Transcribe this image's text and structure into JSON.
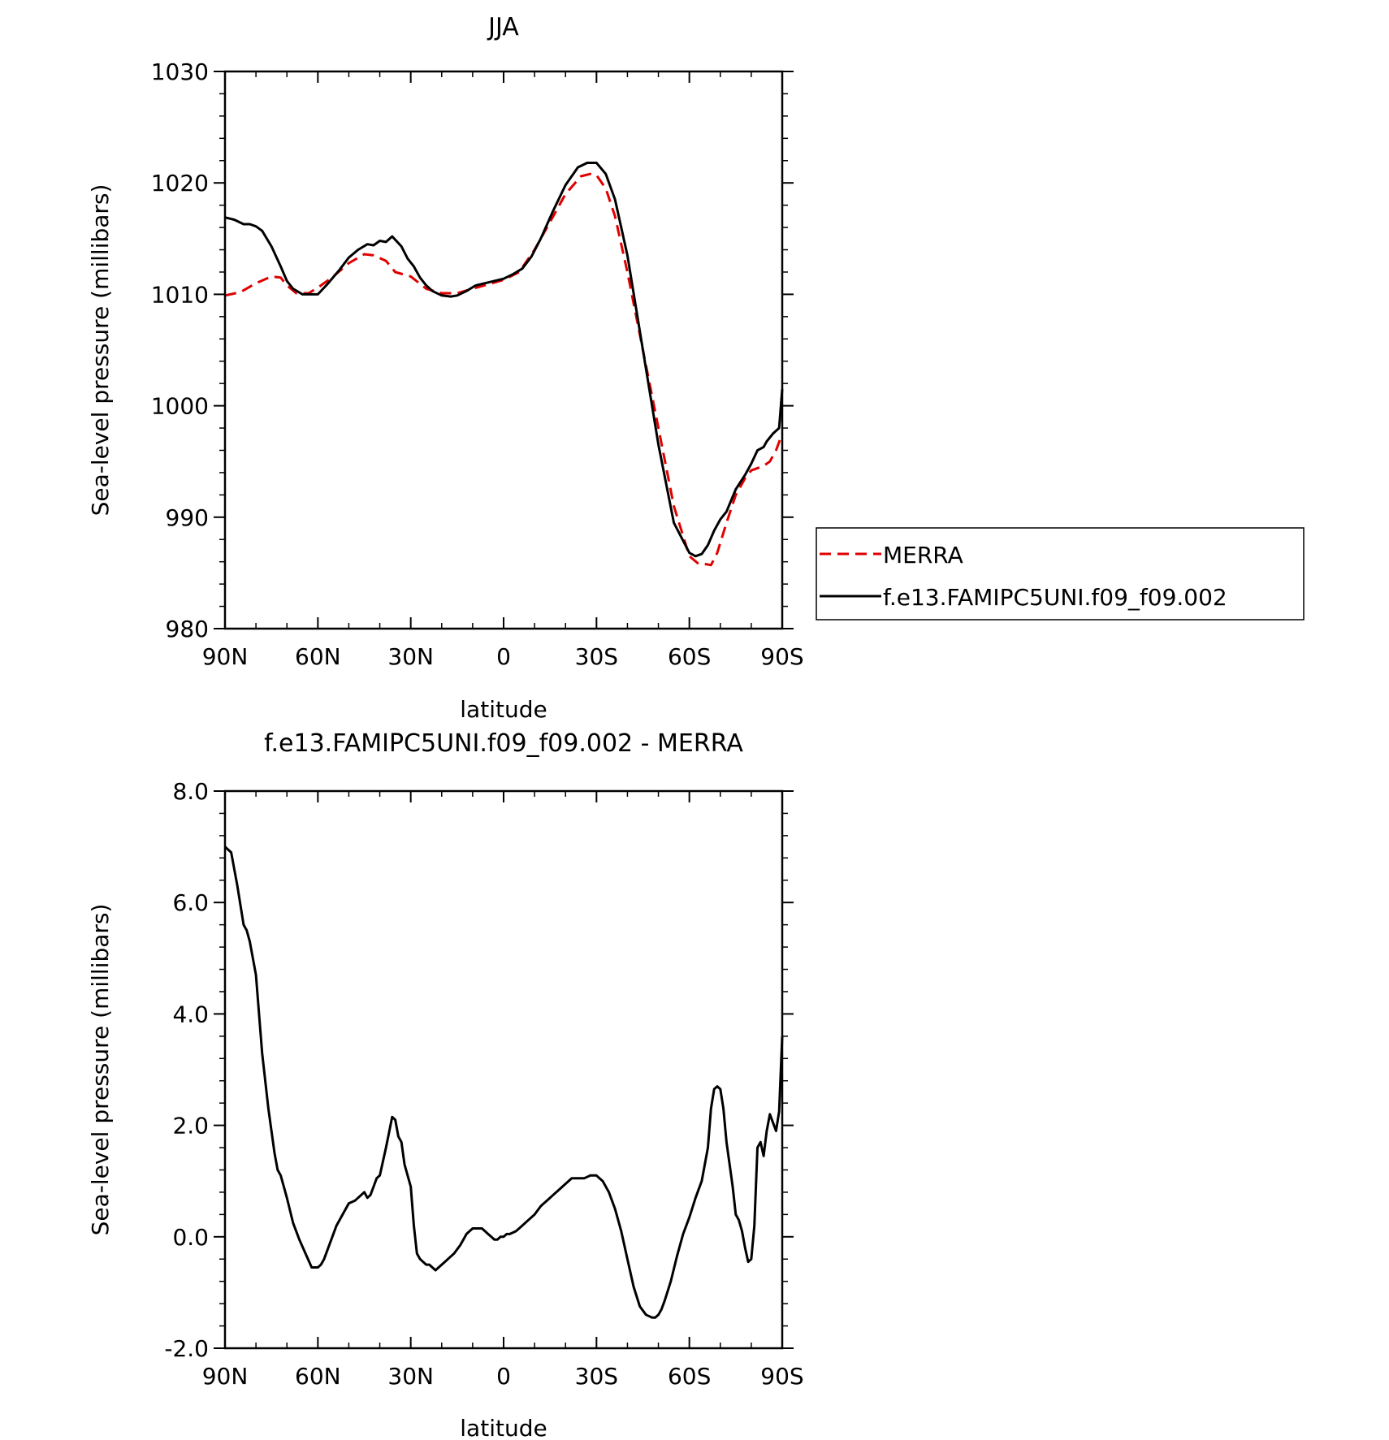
{
  "chart_data": [
    {
      "type": "line",
      "title": "JJA",
      "xlabel": "latitude",
      "ylabel": "Sea-level pressure (millibars)",
      "x_ticks": [
        "90N",
        "60N",
        "30N",
        "0",
        "30S",
        "60S",
        "90S"
      ],
      "x_tick_values": [
        90,
        60,
        30,
        0,
        -30,
        -60,
        -90
      ],
      "y_ticks": [
        "980",
        "990",
        "1000",
        "1010",
        "1020",
        "1030"
      ],
      "y_tick_values": [
        980,
        990,
        1000,
        1010,
        1020,
        1030
      ],
      "xlim": [
        90,
        -90
      ],
      "ylim": [
        980,
        1030
      ],
      "legend_position": "right",
      "series": [
        {
          "name": "MERRA",
          "color": "#e00000",
          "dash": "dashed",
          "x": [
            90,
            85,
            80,
            75,
            72,
            70,
            67,
            63,
            60,
            55,
            50,
            45,
            42,
            38,
            35,
            30,
            25,
            20,
            15,
            10,
            5,
            0,
            -5,
            -10,
            -15,
            -20,
            -25,
            -28,
            -30,
            -33,
            -36,
            -40,
            -45,
            -50,
            -55,
            -60,
            -63,
            -65,
            -67,
            -69,
            -72,
            -75,
            -78,
            -80,
            -84,
            -86,
            -88,
            -90
          ],
          "y": [
            1009.9,
            1010.2,
            1011.0,
            1011.6,
            1011.5,
            1010.8,
            1010.1,
            1010.1,
            1010.6,
            1011.6,
            1012.8,
            1013.6,
            1013.5,
            1013.0,
            1012.0,
            1011.6,
            1010.5,
            1010.1,
            1010.1,
            1010.5,
            1010.9,
            1011.3,
            1012.0,
            1014.0,
            1016.5,
            1019.0,
            1020.6,
            1020.8,
            1020.7,
            1019.5,
            1017.0,
            1012.0,
            1005.0,
            998.0,
            991.0,
            986.5,
            985.8,
            985.8,
            985.7,
            986.8,
            989.5,
            992.0,
            993.5,
            994.2,
            994.6,
            995.0,
            996.0,
            997.5
          ]
        },
        {
          "name": "f.e13.FAMIPC5UNI.f09_f09.002",
          "color": "#000000",
          "dash": "solid",
          "x": [
            90,
            87,
            84,
            82,
            80,
            78,
            75,
            72,
            70,
            68,
            65,
            62,
            60,
            57,
            53,
            50,
            47,
            44,
            42,
            40,
            38,
            36,
            35,
            33,
            31,
            29,
            27,
            25,
            23,
            20,
            17,
            15,
            12,
            9,
            6,
            3,
            0,
            -3,
            -6,
            -9,
            -12,
            -16,
            -20,
            -24,
            -27,
            -30,
            -33,
            -36,
            -40,
            -45,
            -50,
            -55,
            -60,
            -62,
            -64,
            -66,
            -68,
            -70,
            -72,
            -75,
            -78,
            -80,
            -82,
            -84,
            -85,
            -87,
            -89,
            -90
          ],
          "y": [
            1016.9,
            1016.7,
            1016.3,
            1016.3,
            1016.1,
            1015.7,
            1014.3,
            1012.5,
            1011.2,
            1010.5,
            1010.0,
            1010.0,
            1010.0,
            1010.9,
            1012.2,
            1013.3,
            1014.0,
            1014.5,
            1014.4,
            1014.8,
            1014.7,
            1015.2,
            1014.9,
            1014.3,
            1013.2,
            1012.5,
            1011.5,
            1010.8,
            1010.3,
            1009.9,
            1009.8,
            1009.9,
            1010.3,
            1010.8,
            1011.0,
            1011.2,
            1011.4,
            1011.8,
            1012.3,
            1013.4,
            1015.0,
            1017.5,
            1019.8,
            1021.4,
            1021.8,
            1021.8,
            1020.8,
            1018.5,
            1013.5,
            1005.0,
            996.5,
            989.5,
            986.8,
            986.5,
            986.7,
            987.5,
            988.8,
            989.8,
            990.5,
            992.5,
            993.8,
            994.8,
            996.0,
            996.3,
            996.8,
            997.5,
            998.0,
            1001.5
          ]
        }
      ]
    },
    {
      "type": "line",
      "title": "f.e13.FAMIPC5UNI.f09_f09.002 - MERRA",
      "xlabel": "latitude",
      "ylabel": "Sea-level pressure (millibars)",
      "x_ticks": [
        "90N",
        "60N",
        "30N",
        "0",
        "30S",
        "60S",
        "90S"
      ],
      "x_tick_values": [
        90,
        60,
        30,
        0,
        -30,
        -60,
        -90
      ],
      "y_ticks": [
        "-2.0",
        "0.0",
        "2.0",
        "4.0",
        "6.0",
        "8.0"
      ],
      "y_tick_values": [
        -2,
        0,
        2,
        4,
        6,
        8
      ],
      "xlim": [
        90,
        -90
      ],
      "ylim": [
        -2,
        8
      ],
      "series": [
        {
          "color": "#000000",
          "dash": "solid",
          "x": [
            90,
            88,
            86,
            84,
            83,
            82,
            80,
            78,
            76,
            74,
            73,
            72,
            70,
            68,
            66,
            64,
            62,
            60,
            59,
            58,
            56,
            54,
            52,
            50,
            48,
            46,
            45,
            44,
            43,
            42,
            41,
            40,
            38,
            36,
            35,
            34,
            33,
            32,
            30,
            29,
            28,
            27,
            26,
            25,
            24,
            22,
            21,
            20,
            19,
            17,
            16,
            14,
            13,
            12,
            11,
            10,
            9,
            8,
            7,
            6,
            5,
            4,
            3,
            2,
            1,
            0,
            -1,
            -2,
            -4,
            -6,
            -8,
            -10,
            -12,
            -13,
            -14,
            -15,
            -16,
            -18,
            -20,
            -22,
            -24,
            -26,
            -28,
            -30,
            -31,
            -32,
            -34,
            -36,
            -38,
            -40,
            -42,
            -44,
            -46,
            -48,
            -49,
            -50,
            -51,
            -52,
            -54,
            -56,
            -58,
            -60,
            -62,
            -64,
            -66,
            -67,
            -68,
            -69,
            -70,
            -71,
            -72,
            -73,
            -74,
            -75,
            -76,
            -77,
            -78,
            -79,
            -80,
            -81,
            -82,
            -83,
            -84,
            -85,
            -86,
            -87,
            -88,
            -89,
            -90
          ],
          "y": [
            7.0,
            6.9,
            6.3,
            5.6,
            5.5,
            5.3,
            4.7,
            3.3,
            2.3,
            1.5,
            1.2,
            1.1,
            0.7,
            0.25,
            -0.05,
            -0.3,
            -0.55,
            -0.55,
            -0.5,
            -0.4,
            -0.1,
            0.2,
            0.4,
            0.6,
            0.65,
            0.75,
            0.8,
            0.7,
            0.75,
            0.9,
            1.05,
            1.1,
            1.6,
            2.15,
            2.1,
            1.8,
            1.7,
            1.3,
            0.9,
            0.2,
            -0.3,
            -0.4,
            -0.45,
            -0.5,
            -0.5,
            -0.6,
            -0.55,
            -0.5,
            -0.45,
            -0.35,
            -0.3,
            -0.15,
            -0.05,
            0.05,
            0.1,
            0.15,
            0.15,
            0.15,
            0.15,
            0.1,
            0.05,
            0.0,
            -0.05,
            -0.05,
            0.0,
            0.0,
            0.05,
            0.05,
            0.1,
            0.2,
            0.3,
            0.4,
            0.55,
            0.6,
            0.65,
            0.7,
            0.75,
            0.85,
            0.95,
            1.05,
            1.05,
            1.05,
            1.1,
            1.1,
            1.05,
            1.0,
            0.8,
            0.5,
            0.1,
            -0.4,
            -0.9,
            -1.25,
            -1.4,
            -1.45,
            -1.45,
            -1.4,
            -1.3,
            -1.15,
            -0.8,
            -0.35,
            0.05,
            0.35,
            0.7,
            1.0,
            1.6,
            2.3,
            2.65,
            2.7,
            2.65,
            2.3,
            1.7,
            1.3,
            0.9,
            0.4,
            0.3,
            0.1,
            -0.2,
            -0.45,
            -0.4,
            0.2,
            1.6,
            1.7,
            1.45,
            1.9,
            2.2,
            2.05,
            1.9,
            2.25,
            3.6
          ]
        }
      ]
    }
  ]
}
